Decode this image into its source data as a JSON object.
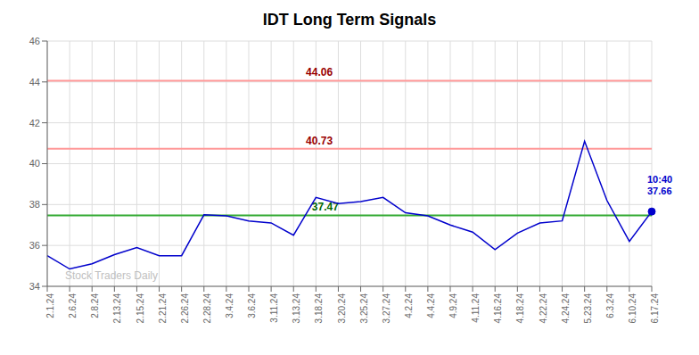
{
  "chart_data": {
    "type": "line",
    "title": "IDT Long Term Signals",
    "categories": [
      "2.1.24",
      "2.6.24",
      "2.8.24",
      "2.13.24",
      "2.15.24",
      "2.21.24",
      "2.26.24",
      "2.28.24",
      "3.4.24",
      "3.6.24",
      "3.11.24",
      "3.13.24",
      "3.18.24",
      "3.20.24",
      "3.25.24",
      "3.27.24",
      "4.2.24",
      "4.4.24",
      "4.9.24",
      "4.11.24",
      "4.16.24",
      "4.18.24",
      "4.22.24",
      "4.24.24",
      "5.23.24",
      "6.3.24",
      "6.10.24",
      "6.17.24"
    ],
    "values": [
      35.5,
      34.85,
      35.1,
      35.55,
      35.9,
      35.5,
      35.5,
      37.5,
      37.45,
      37.2,
      37.1,
      36.5,
      38.35,
      38.05,
      38.15,
      38.35,
      37.6,
      37.45,
      37.0,
      36.65,
      35.8,
      36.6,
      37.1,
      37.2,
      41.1,
      38.2,
      36.2,
      37.66
    ],
    "color": "#0000cc",
    "ylim": [
      34,
      46
    ],
    "yticks": [
      34,
      36,
      38,
      40,
      42,
      44,
      46
    ],
    "grid": true,
    "hlines": [
      {
        "value": 44.06,
        "color": "#ff9999",
        "label": {
          "text": "44.06",
          "color": "#990000"
        }
      },
      {
        "value": 40.73,
        "color": "#ff9999",
        "label": {
          "text": "40.73",
          "color": "#990000"
        }
      },
      {
        "value": 37.47,
        "color": "#33aa33",
        "label": {
          "text": "37.47",
          "color": "#006600"
        }
      }
    ],
    "last_label": {
      "time": "10:40",
      "price": "37.66"
    },
    "watermark": "Stock Traders Daily"
  }
}
